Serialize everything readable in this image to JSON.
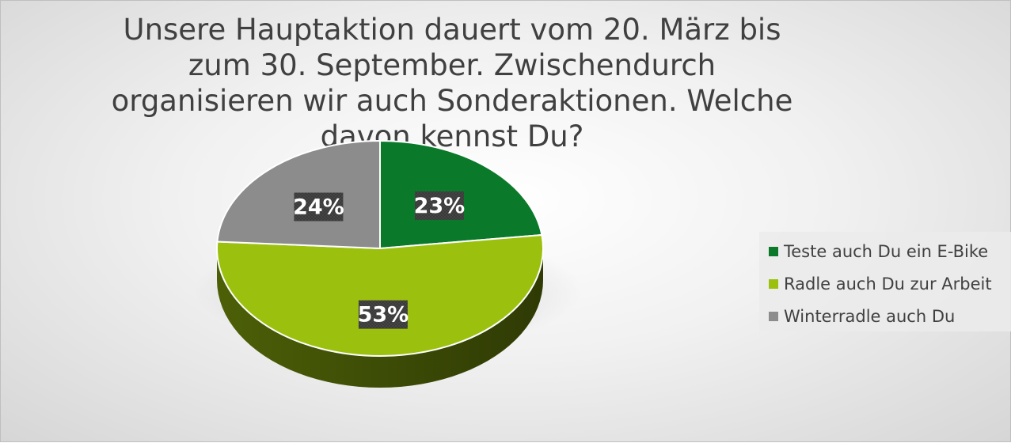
{
  "chart_data": {
    "type": "pie",
    "title": "Unsere Hauptaktion dauert vom 20. März bis zum 30. September. Zwischendurch organisieren wir auch Sonderaktionen. Welche davon kennst Du?",
    "categories": [
      "Teste auch Du ein E-Bike",
      "Radle auch Du zur Arbeit",
      "Winterradle auch Du"
    ],
    "values": [
      23,
      53,
      24
    ],
    "value_labels": [
      "23%",
      "53%",
      "24%"
    ],
    "colors": [
      "#0a7a2a",
      "#9bc10e",
      "#8c8c8c"
    ],
    "legend_position": "right",
    "style": "3d"
  }
}
